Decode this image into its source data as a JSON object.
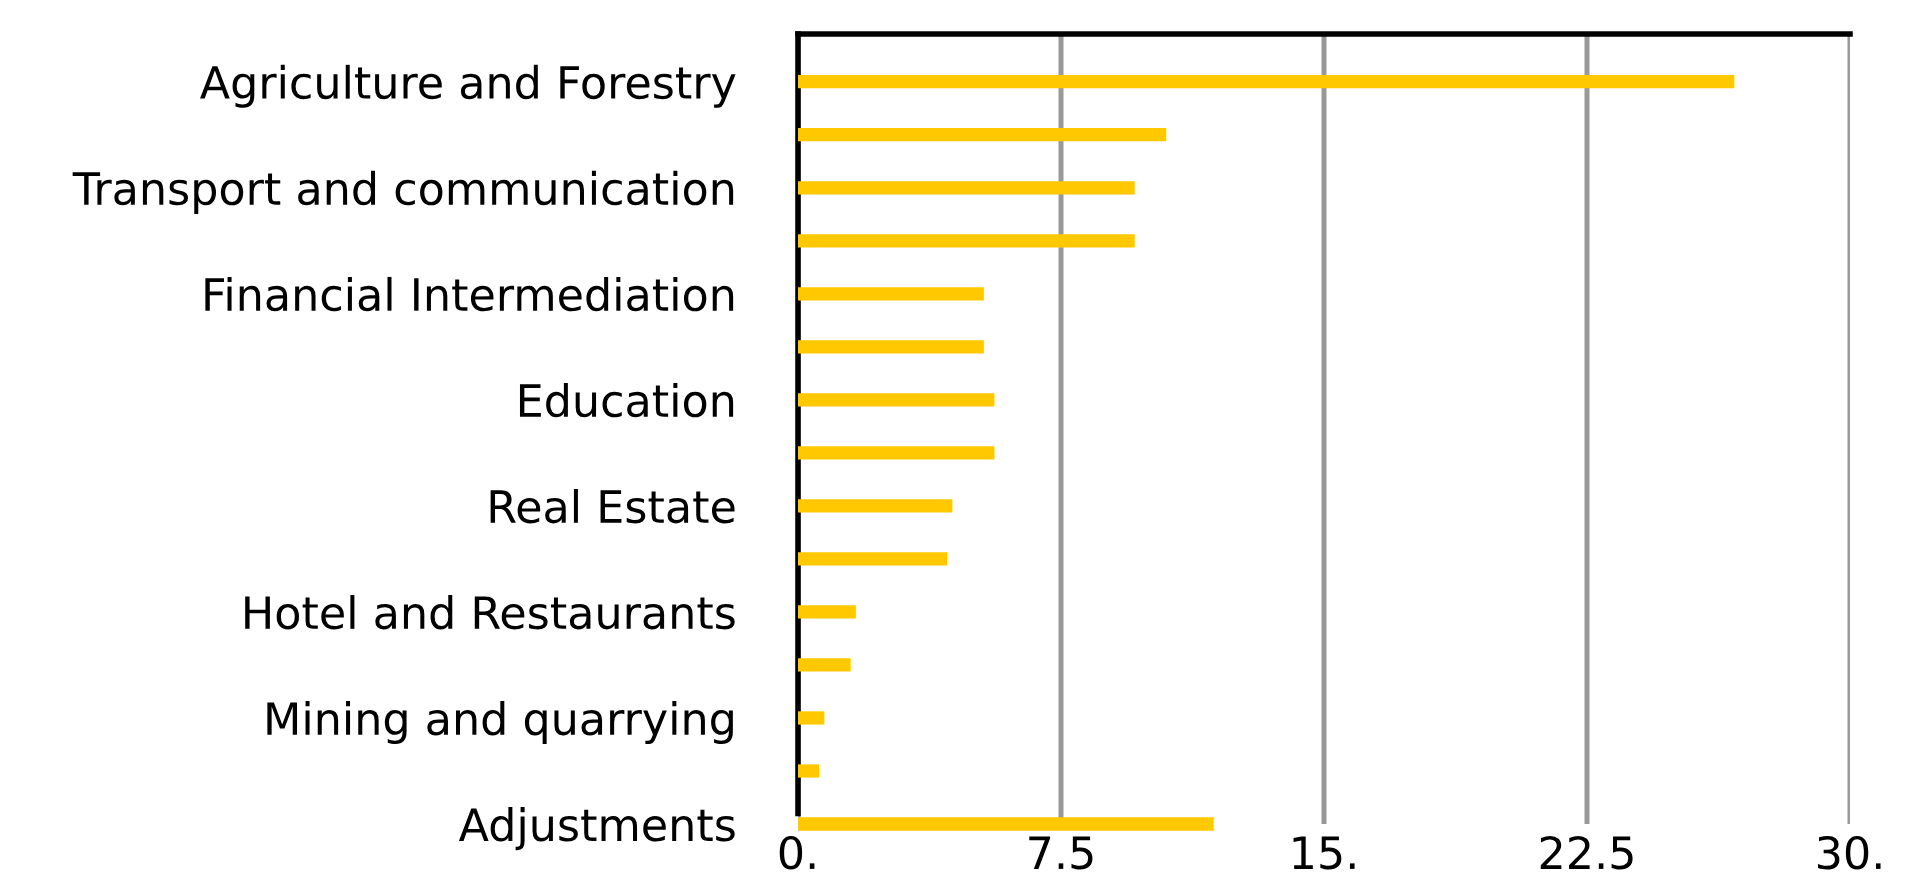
{
  "chart_data": {
    "type": "bar",
    "orientation": "horizontal",
    "categories": [
      "Agriculture and Forestry",
      null,
      "Transport and communication",
      null,
      "Financial Intermediation",
      null,
      "Education",
      null,
      "Real Estate",
      null,
      "Hotel and Restaurants",
      null,
      "Mining and quarrying",
      null,
      "Adjustments"
    ],
    "values": [
      26.7,
      10.5,
      9.6,
      9.6,
      5.3,
      5.3,
      5.6,
      5.6,
      4.4,
      4.25,
      1.65,
      1.5,
      0.75,
      0.6,
      11.85
    ],
    "color": "#ffc800",
    "xlim": [
      0,
      30
    ],
    "xticks": [
      {
        "value": 0,
        "label": "0."
      },
      7.5,
      {
        "value": 15,
        "label": "15."
      },
      22.5,
      {
        "value": 30,
        "label": "30."
      }
    ],
    "grid": "x"
  }
}
